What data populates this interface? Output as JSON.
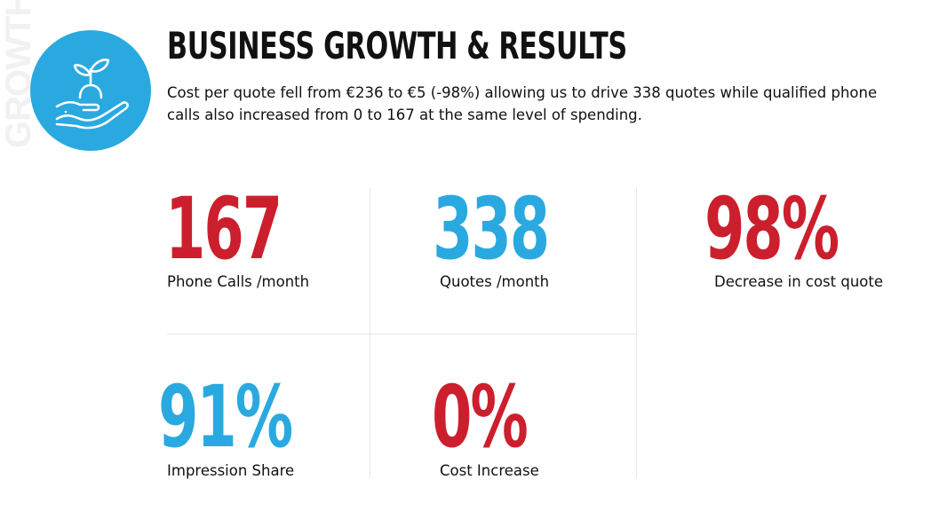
{
  "side_label": "GROWTH",
  "icon": "plant-in-hand-icon",
  "colors": {
    "accent_blue": "#2aa9e0",
    "accent_red": "#cc1f2d"
  },
  "title": "BUSINESS GROWTH & RESULTS",
  "description": "Cost per quote fell from €236 to €5 (-98%) allowing us to drive 338 quotes while qualified phone calls also increased from 0 to 167 at the same level of spending.",
  "stats": [
    {
      "value": "167",
      "label": "Phone Calls /month",
      "color": "red"
    },
    {
      "value": "338",
      "label": "Quotes /month",
      "color": "blue"
    },
    {
      "value": "98%",
      "label": "Decrease in cost quote",
      "color": "red"
    },
    {
      "value": "91%",
      "label": "Impression Share",
      "color": "blue"
    },
    {
      "value": "0%",
      "label": "Cost Increase",
      "color": "red"
    }
  ]
}
